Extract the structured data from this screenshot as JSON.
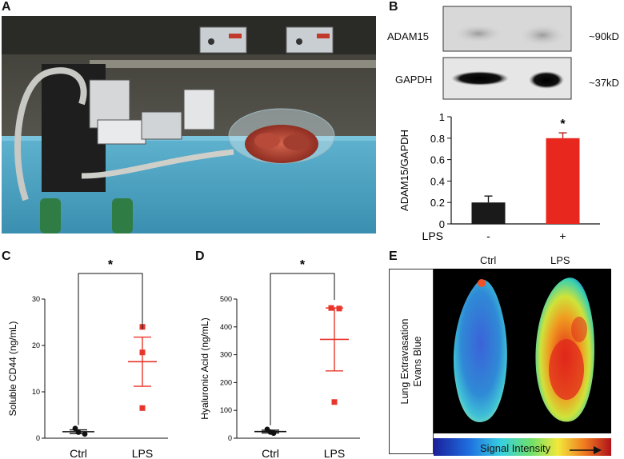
{
  "panels": {
    "a": {
      "label": "A"
    },
    "b": {
      "label": "B"
    },
    "c": {
      "label": "C"
    },
    "d": {
      "label": "D"
    },
    "e": {
      "label": "E"
    }
  },
  "blot": {
    "rows": [
      {
        "label": "ADAM15",
        "size": "~90kD"
      },
      {
        "label": "GAPDH",
        "size": "~37kD"
      }
    ]
  },
  "chart_data": [
    {
      "type": "bar",
      "panel": "B",
      "categories": [
        "-",
        "+"
      ],
      "xlabel": "LPS",
      "ylabel": "ADAM15/GAPDH",
      "ylim": [
        0,
        1
      ],
      "yticks": [
        "0",
        "0.2",
        "0.4",
        "0.6",
        "0.8",
        "1"
      ],
      "values": [
        0.2,
        0.8
      ],
      "errors": [
        0.06,
        0.05
      ],
      "colors": [
        "#1a1a1a",
        "#e8281e"
      ],
      "significance": "*"
    },
    {
      "type": "scatter",
      "panel": "C",
      "categories": [
        "Ctrl",
        "LPS"
      ],
      "ylabel": "Soluble CD44  (ng/mL)",
      "ylim": [
        0,
        30
      ],
      "yticks": [
        "0",
        "10",
        "20",
        "30"
      ],
      "series": [
        {
          "points": [
            2.1,
            0.9,
            1.3
          ],
          "mean": 1.4,
          "sem": 0.4,
          "color": "#111111"
        },
        {
          "points": [
            24.0,
            18.5,
            6.5
          ],
          "mean": 16.5,
          "sem": 5.3,
          "color": "#e8352b"
        }
      ],
      "significance": "*"
    },
    {
      "type": "scatter",
      "panel": "D",
      "categories": [
        "Ctrl",
        "LPS"
      ],
      "ylabel": "Hyaluronic Acid (ng/mL)",
      "ylim": [
        0,
        500
      ],
      "yticks": [
        "0",
        "100",
        "200",
        "300",
        "400",
        "500"
      ],
      "series": [
        {
          "points": [
            32,
            18,
            22
          ],
          "mean": 24,
          "sem": 5,
          "color": "#111111"
        },
        {
          "points": [
            468,
            466,
            130
          ],
          "mean": 355,
          "sem": 113,
          "color": "#e8352b"
        }
      ],
      "significance": "*"
    }
  ],
  "panel_e": {
    "side_label_line1": "Lung Extravasation",
    "side_label_line2": "Evans Blue",
    "col_ctrl": "Ctrl",
    "col_lps": "LPS",
    "colorbar_label": "Signal Intensity"
  },
  "colors": {
    "accent_red": "#e8281e",
    "bar_dark": "#1a1a1a"
  }
}
